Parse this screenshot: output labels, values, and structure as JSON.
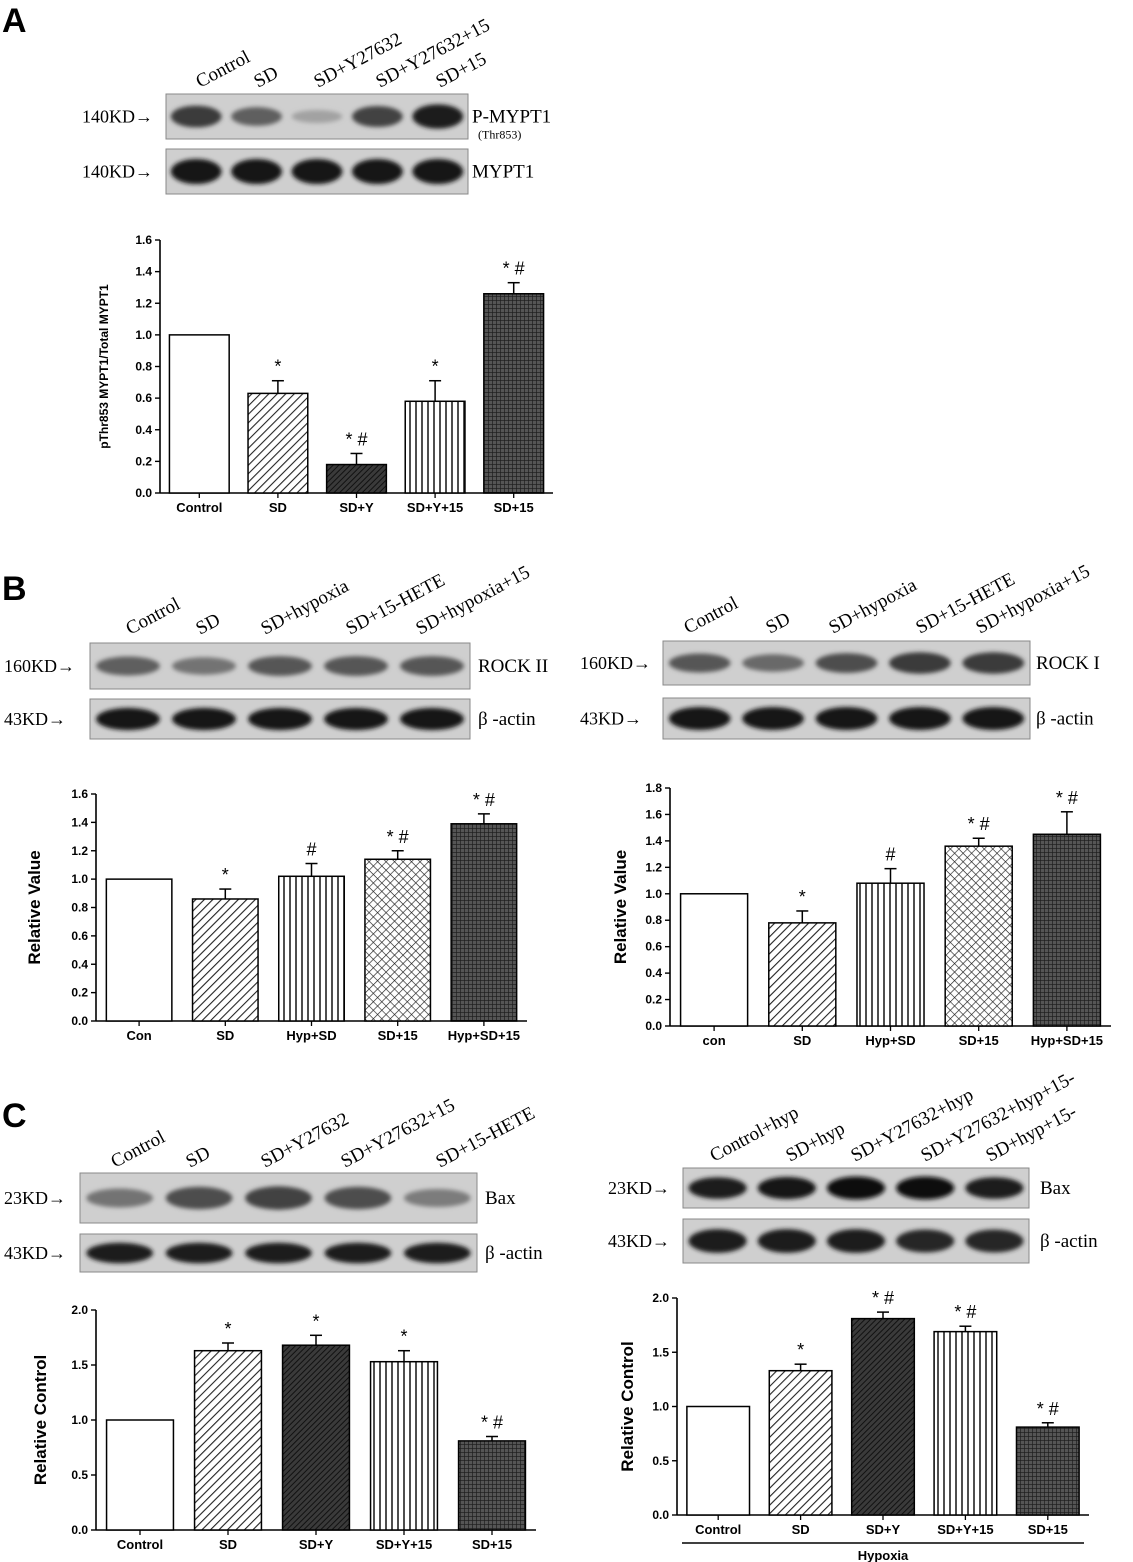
{
  "panels": {
    "A": "A",
    "B": "B",
    "C": "C"
  },
  "blots": [
    {
      "id": "A-blot",
      "lanes": [
        "Control",
        "SD",
        "SD+Y27632",
        "SD+Y27632+15",
        "SD+15"
      ],
      "rows": [
        {
          "kd": "140KD",
          "label": "P-MYPT1",
          "sublabel": "(Thr853)",
          "intensity": [
            0.75,
            0.55,
            0.2,
            0.7,
            0.9
          ]
        },
        {
          "kd": "140KD",
          "label": "MYPT1",
          "sublabel": "",
          "intensity": [
            0.95,
            0.95,
            0.95,
            0.95,
            0.95
          ]
        }
      ]
    },
    {
      "id": "B-left-blot",
      "lanes": [
        "Control",
        "SD",
        "SD+hypoxia",
        "SD+15-HETE",
        "SD+hypoxia+15"
      ],
      "rows": [
        {
          "kd": "160KD",
          "label": "ROCK II",
          "sublabel": "",
          "intensity": [
            0.55,
            0.45,
            0.6,
            0.6,
            0.6
          ]
        },
        {
          "kd": "43KD",
          "label": "β -actin",
          "sublabel": "",
          "intensity": [
            0.95,
            0.95,
            0.95,
            0.95,
            0.95
          ]
        }
      ]
    },
    {
      "id": "B-right-blot",
      "lanes": [
        "Control",
        "SD",
        "SD+hypoxia",
        "SD+15-HETE",
        "SD+hypoxia+15"
      ],
      "rows": [
        {
          "kd": "160KD",
          "label": "ROCK I",
          "sublabel": "",
          "intensity": [
            0.6,
            0.5,
            0.65,
            0.75,
            0.75
          ]
        },
        {
          "kd": "43KD",
          "label": "β -actin",
          "sublabel": "",
          "intensity": [
            0.95,
            0.95,
            0.95,
            0.95,
            0.95
          ]
        }
      ]
    },
    {
      "id": "C-left-blot",
      "lanes": [
        "Control",
        "SD",
        "SD+Y27632",
        "SD+Y27632+15",
        "SD+15-HETE"
      ],
      "rows": [
        {
          "kd": "23KD",
          "label": "Bax",
          "sublabel": "",
          "intensity": [
            0.45,
            0.65,
            0.7,
            0.65,
            0.4
          ]
        },
        {
          "kd": "43KD",
          "label": "β -actin",
          "sublabel": "",
          "intensity": [
            0.9,
            0.9,
            0.9,
            0.9,
            0.9
          ]
        }
      ]
    },
    {
      "id": "C-right-blot",
      "lanes": [
        "Control+hyp",
        "SD+hyp",
        "SD+Y27632+hyp",
        "SD+Y27632+hyp+15-",
        "SD+hyp+15-"
      ],
      "rows": [
        {
          "kd": "23KD",
          "label": "Bax",
          "sublabel": "",
          "intensity": [
            0.9,
            0.95,
            1.0,
            1.0,
            0.9
          ]
        },
        {
          "kd": "43KD",
          "label": "β -actin",
          "sublabel": "",
          "intensity": [
            0.9,
            0.9,
            0.9,
            0.85,
            0.85
          ]
        }
      ]
    }
  ],
  "chart_data": [
    {
      "id": "A",
      "type": "bar",
      "title": "",
      "ylabel": "pThr853 MYPT1/Total MYPT1",
      "xlabel": "",
      "ylim": [
        0,
        1.6
      ],
      "yticks": [
        "0.0",
        "0.2",
        "0.4",
        "0.6",
        "0.8",
        "1.0",
        "1.2",
        "1.4",
        "1.6"
      ],
      "categories": [
        "Control",
        "SD",
        "SD+Y",
        "SD+Y+15",
        "SD+15"
      ],
      "values": [
        1.0,
        0.63,
        0.18,
        0.58,
        1.26
      ],
      "errors": [
        0,
        0.08,
        0.07,
        0.13,
        0.07
      ],
      "annotations": [
        "",
        "*",
        "* #",
        "*",
        "* #"
      ],
      "patterns": [
        "none",
        "diag",
        "dense",
        "vert",
        "grid"
      ],
      "group_label": ""
    },
    {
      "id": "B-left",
      "type": "bar",
      "title": "",
      "ylabel": "Relative Value",
      "xlabel": "",
      "ylim": [
        0,
        1.6
      ],
      "yticks": [
        "0.0",
        "0.2",
        "0.4",
        "0.6",
        "0.8",
        "1.0",
        "1.2",
        "1.4",
        "1.6"
      ],
      "categories": [
        "Con",
        "SD",
        "Hyp+SD",
        "SD+15",
        "Hyp+SD+15"
      ],
      "values": [
        1.0,
        0.86,
        1.02,
        1.14,
        1.39
      ],
      "errors": [
        0,
        0.07,
        0.09,
        0.06,
        0.07
      ],
      "annotations": [
        "",
        "*",
        "#",
        "*  #",
        "*  #"
      ],
      "patterns": [
        "none",
        "diag",
        "vert",
        "cross",
        "grid"
      ],
      "group_label": ""
    },
    {
      "id": "B-right",
      "type": "bar",
      "title": "",
      "ylabel": "Relative Value",
      "xlabel": "",
      "ylim": [
        0,
        1.8
      ],
      "yticks": [
        "0.0",
        "0.2",
        "0.4",
        "0.6",
        "0.8",
        "1.0",
        "1.2",
        "1.4",
        "1.6",
        "1.8"
      ],
      "categories": [
        "con",
        "SD",
        "Hyp+SD",
        "SD+15",
        "Hyp+SD+15"
      ],
      "values": [
        1.0,
        0.78,
        1.08,
        1.36,
        1.45
      ],
      "errors": [
        0,
        0.09,
        0.11,
        0.06,
        0.17
      ],
      "annotations": [
        "",
        "*",
        "#",
        "*  #",
        "*  #"
      ],
      "patterns": [
        "none",
        "diag",
        "vert",
        "cross",
        "grid"
      ],
      "group_label": ""
    },
    {
      "id": "C-left",
      "type": "bar",
      "title": "",
      "ylabel": "Relative Control",
      "xlabel": "",
      "ylim": [
        0,
        2.0
      ],
      "yticks": [
        "0.0",
        "0.5",
        "1.0",
        "1.5",
        "2.0"
      ],
      "categories": [
        "Control",
        "SD",
        "SD+Y",
        "SD+Y+15",
        "SD+15"
      ],
      "values": [
        1.0,
        1.63,
        1.68,
        1.53,
        0.81
      ],
      "errors": [
        0,
        0.07,
        0.09,
        0.1,
        0.04
      ],
      "annotations": [
        "",
        "*",
        "*",
        "*",
        "* #"
      ],
      "patterns": [
        "none",
        "diag",
        "dense",
        "vert",
        "grid"
      ],
      "group_label": ""
    },
    {
      "id": "C-right",
      "type": "bar",
      "title": "",
      "ylabel": "Relative Control",
      "xlabel": "",
      "ylim": [
        0,
        2.0
      ],
      "yticks": [
        "0.0",
        "0.5",
        "1.0",
        "1.5",
        "2.0"
      ],
      "categories": [
        "Control",
        "SD",
        "SD+Y",
        "SD+Y+15",
        "SD+15"
      ],
      "values": [
        1.0,
        1.33,
        1.81,
        1.69,
        0.81
      ],
      "errors": [
        0,
        0.06,
        0.06,
        0.05,
        0.04
      ],
      "annotations": [
        "",
        "*",
        "* #",
        "* #",
        "* #"
      ],
      "patterns": [
        "none",
        "diag",
        "dense",
        "vert",
        "grid"
      ],
      "group_label": "Hypoxia"
    }
  ]
}
